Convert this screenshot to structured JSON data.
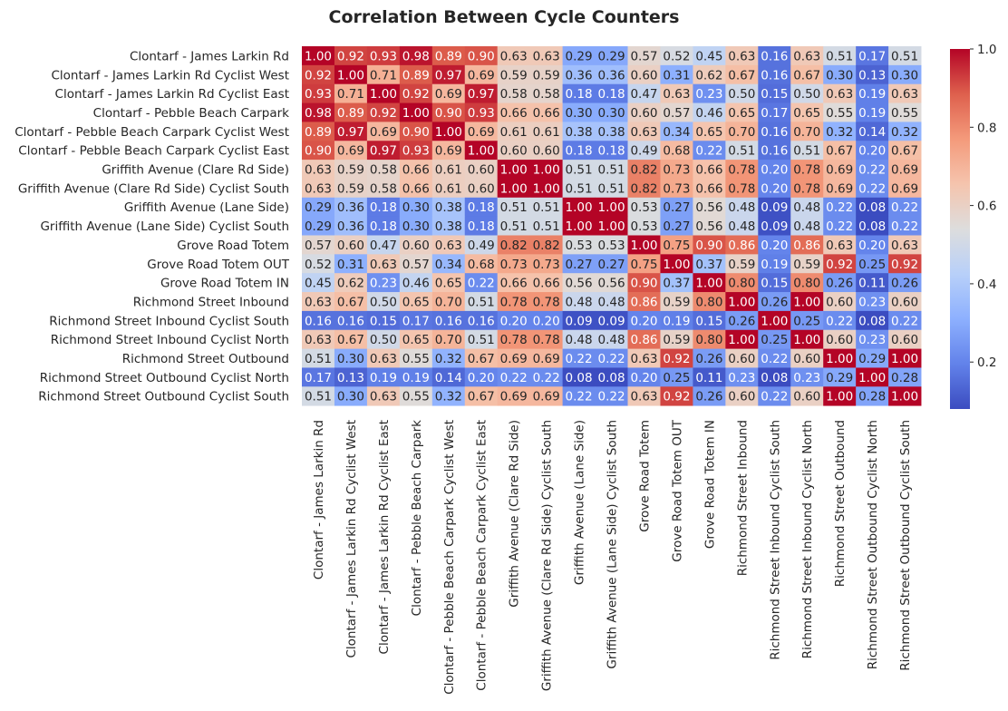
{
  "chart_data": {
    "type": "heatmap",
    "title": "Correlation Between Cycle Counters",
    "colormap": "coolwarm",
    "labels": [
      "Clontarf - James Larkin Rd",
      "Clontarf - James Larkin Rd Cyclist West",
      "Clontarf - James Larkin Rd Cyclist East",
      "Clontarf - Pebble Beach Carpark",
      "Clontarf - Pebble Beach Carpark Cyclist West",
      "Clontarf - Pebble Beach Carpark Cyclist East",
      "Griffith Avenue (Clare Rd Side)",
      "Griffith Avenue (Clare Rd Side) Cyclist South",
      "Griffith Avenue (Lane Side)",
      "Griffith Avenue (Lane Side) Cyclist South",
      "Grove Road Totem",
      "Grove Road Totem OUT",
      "Grove Road Totem IN",
      "Richmond Street Inbound",
      "Richmond Street Inbound Cyclist South",
      "Richmond Street Inbound Cyclist North",
      "Richmond Street Outbound",
      "Richmond Street Outbound Cyclist North",
      "Richmond Street Outbound Cyclist South"
    ],
    "values": [
      [
        1.0,
        0.92,
        0.93,
        0.98,
        0.89,
        0.9,
        0.63,
        0.63,
        0.29,
        0.29,
        0.57,
        0.52,
        0.45,
        0.63,
        0.16,
        0.63,
        0.51,
        0.17,
        0.51
      ],
      [
        0.92,
        1.0,
        0.71,
        0.89,
        0.97,
        0.69,
        0.59,
        0.59,
        0.36,
        0.36,
        0.6,
        0.31,
        0.62,
        0.67,
        0.16,
        0.67,
        0.3,
        0.13,
        0.3
      ],
      [
        0.93,
        0.71,
        1.0,
        0.92,
        0.69,
        0.97,
        0.58,
        0.58,
        0.18,
        0.18,
        0.47,
        0.63,
        0.23,
        0.5,
        0.15,
        0.5,
        0.63,
        0.19,
        0.63
      ],
      [
        0.98,
        0.89,
        0.92,
        1.0,
        0.9,
        0.93,
        0.66,
        0.66,
        0.3,
        0.3,
        0.6,
        0.57,
        0.46,
        0.65,
        0.17,
        0.65,
        0.55,
        0.19,
        0.55
      ],
      [
        0.89,
        0.97,
        0.69,
        0.9,
        1.0,
        0.69,
        0.61,
        0.61,
        0.38,
        0.38,
        0.63,
        0.34,
        0.65,
        0.7,
        0.16,
        0.7,
        0.32,
        0.14,
        0.32
      ],
      [
        0.9,
        0.69,
        0.97,
        0.93,
        0.69,
        1.0,
        0.6,
        0.6,
        0.18,
        0.18,
        0.49,
        0.68,
        0.22,
        0.51,
        0.16,
        0.51,
        0.67,
        0.2,
        0.67
      ],
      [
        0.63,
        0.59,
        0.58,
        0.66,
        0.61,
        0.6,
        1.0,
        1.0,
        0.51,
        0.51,
        0.82,
        0.73,
        0.66,
        0.78,
        0.2,
        0.78,
        0.69,
        0.22,
        0.69
      ],
      [
        0.63,
        0.59,
        0.58,
        0.66,
        0.61,
        0.6,
        1.0,
        1.0,
        0.51,
        0.51,
        0.82,
        0.73,
        0.66,
        0.78,
        0.2,
        0.78,
        0.69,
        0.22,
        0.69
      ],
      [
        0.29,
        0.36,
        0.18,
        0.3,
        0.38,
        0.18,
        0.51,
        0.51,
        1.0,
        1.0,
        0.53,
        0.27,
        0.56,
        0.48,
        0.09,
        0.48,
        0.22,
        0.08,
        0.22
      ],
      [
        0.29,
        0.36,
        0.18,
        0.3,
        0.38,
        0.18,
        0.51,
        0.51,
        1.0,
        1.0,
        0.53,
        0.27,
        0.56,
        0.48,
        0.09,
        0.48,
        0.22,
        0.08,
        0.22
      ],
      [
        0.57,
        0.6,
        0.47,
        0.6,
        0.63,
        0.49,
        0.82,
        0.82,
        0.53,
        0.53,
        1.0,
        0.75,
        0.9,
        0.86,
        0.2,
        0.86,
        0.63,
        0.2,
        0.63
      ],
      [
        0.52,
        0.31,
        0.63,
        0.57,
        0.34,
        0.68,
        0.73,
        0.73,
        0.27,
        0.27,
        0.75,
        1.0,
        0.37,
        0.59,
        0.19,
        0.59,
        0.92,
        0.25,
        0.92
      ],
      [
        0.45,
        0.62,
        0.23,
        0.46,
        0.65,
        0.22,
        0.66,
        0.66,
        0.56,
        0.56,
        0.9,
        0.37,
        1.0,
        0.8,
        0.15,
        0.8,
        0.26,
        0.11,
        0.26
      ],
      [
        0.63,
        0.67,
        0.5,
        0.65,
        0.7,
        0.51,
        0.78,
        0.78,
        0.48,
        0.48,
        0.86,
        0.59,
        0.8,
        1.0,
        0.26,
        1.0,
        0.6,
        0.23,
        0.6
      ],
      [
        0.16,
        0.16,
        0.15,
        0.17,
        0.16,
        0.16,
        0.2,
        0.2,
        0.09,
        0.09,
        0.2,
        0.19,
        0.15,
        0.26,
        1.0,
        0.25,
        0.22,
        0.08,
        0.22
      ],
      [
        0.63,
        0.67,
        0.5,
        0.65,
        0.7,
        0.51,
        0.78,
        0.78,
        0.48,
        0.48,
        0.86,
        0.59,
        0.8,
        1.0,
        0.25,
        1.0,
        0.6,
        0.23,
        0.6
      ],
      [
        0.51,
        0.3,
        0.63,
        0.55,
        0.32,
        0.67,
        0.69,
        0.69,
        0.22,
        0.22,
        0.63,
        0.92,
        0.26,
        0.6,
        0.22,
        0.6,
        1.0,
        0.29,
        1.0
      ],
      [
        0.17,
        0.13,
        0.19,
        0.19,
        0.14,
        0.2,
        0.22,
        0.22,
        0.08,
        0.08,
        0.2,
        0.25,
        0.11,
        0.23,
        0.08,
        0.23,
        0.29,
        1.0,
        0.28
      ],
      [
        0.51,
        0.3,
        0.63,
        0.55,
        0.32,
        0.67,
        0.69,
        0.69,
        0.22,
        0.22,
        0.63,
        0.92,
        0.26,
        0.6,
        0.22,
        0.6,
        1.0,
        0.28,
        1.0
      ]
    ],
    "value_range": [
      0.08,
      1.0
    ],
    "colorbar_ticks": [
      "0.2",
      "0.4",
      "0.6",
      "0.8",
      "1.0"
    ],
    "colorbar_tick_values": [
      0.2,
      0.4,
      0.6,
      0.8,
      1.0
    ],
    "annotated": true,
    "grid": false,
    "legend": "colorbar-right"
  }
}
